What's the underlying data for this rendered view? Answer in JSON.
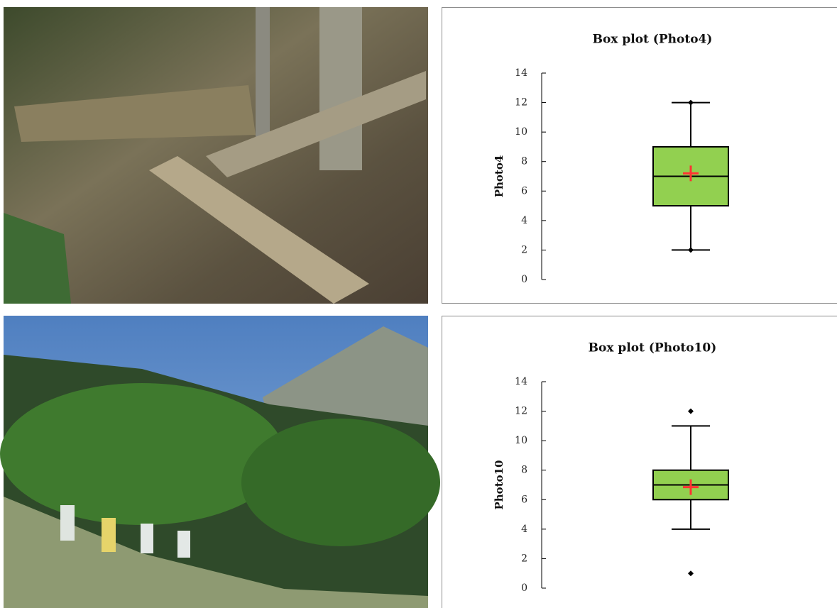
{
  "chart_data": [
    {
      "type": "box",
      "title": "Box plot (Photo4)",
      "y_label": "Photo4",
      "min": 2,
      "q1": 5,
      "median": 7,
      "q3": 9,
      "max": 12,
      "mean": 7.2,
      "outliers": [],
      "color": "#92d050",
      "mean_color": "#ff3333",
      "ylim": [
        0,
        14
      ],
      "yticks": [
        0,
        2,
        4,
        6,
        8,
        10,
        12,
        14
      ]
    },
    {
      "type": "box",
      "title": "Box plot (Photo10)",
      "y_label": "Photo10",
      "min": 4,
      "q1": 6,
      "median": 7,
      "q3": 8,
      "max": 11,
      "mean": 6.85,
      "outliers": [
        12,
        1
      ],
      "color": "#92d050",
      "mean_color": "#ff3333",
      "ylim": [
        0,
        14
      ],
      "yticks": [
        0,
        2,
        4,
        6,
        8,
        10,
        12,
        14
      ]
    }
  ]
}
